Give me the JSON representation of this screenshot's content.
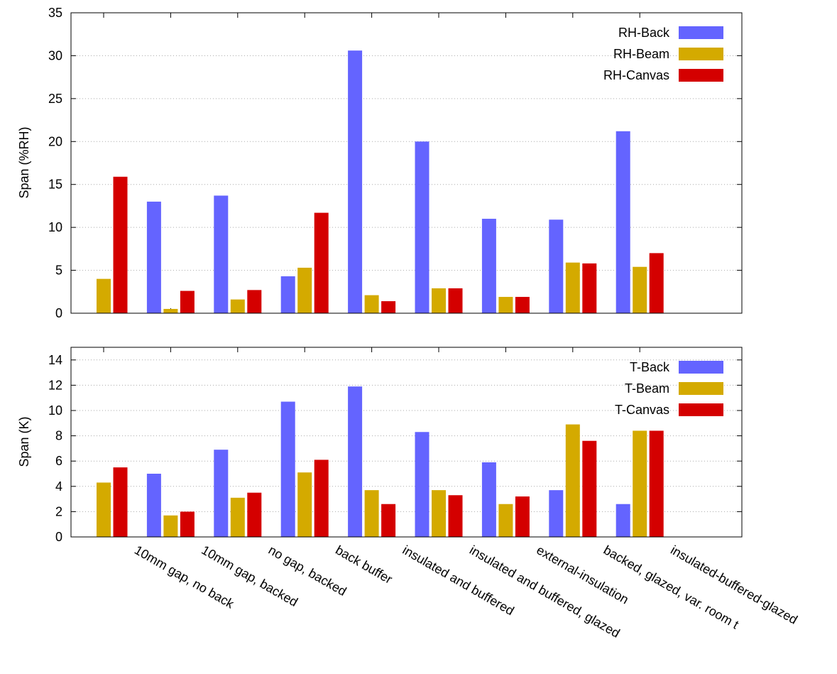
{
  "categories": [
    "10mm gap, no back",
    "10mm gap, backed",
    "no gap, backed",
    "back buffer",
    "insulated and buffered",
    "insulated and buffered, glazed",
    "external-insulation",
    "backed, glazed, var. room t",
    "insulated-buffered-glazed"
  ],
  "colors": {
    "back": "#6464ff",
    "beam": "#d4aa00",
    "canvas": "#d40000"
  },
  "chart_data": [
    {
      "type": "bar",
      "title": "",
      "xlabel": "",
      "ylabel": "Span (%RH)",
      "ylim": [
        0,
        35
      ],
      "yticks": [
        0,
        5,
        10,
        15,
        20,
        25,
        30,
        35
      ],
      "grid": true,
      "legend_position": "top-right",
      "series": [
        {
          "name": "RH-Back",
          "values": [
            0,
            13.0,
            13.7,
            4.3,
            30.6,
            20.0,
            11.0,
            10.9,
            21.2
          ]
        },
        {
          "name": "RH-Beam",
          "values": [
            4.0,
            0.5,
            1.6,
            5.3,
            2.1,
            2.9,
            1.9,
            5.9,
            5.4
          ]
        },
        {
          "name": "RH-Canvas",
          "values": [
            15.9,
            2.6,
            2.7,
            11.7,
            1.4,
            2.9,
            1.9,
            5.8,
            7.0
          ]
        }
      ]
    },
    {
      "type": "bar",
      "title": "",
      "xlabel": "",
      "ylabel": "Span (K)",
      "ylim": [
        0,
        15
      ],
      "yticks": [
        0,
        2,
        4,
        6,
        8,
        10,
        12,
        14
      ],
      "grid": true,
      "legend_position": "top-right",
      "series": [
        {
          "name": "T-Back",
          "values": [
            0,
            5.0,
            6.9,
            10.7,
            11.9,
            8.3,
            5.9,
            3.7,
            2.6
          ]
        },
        {
          "name": "T-Beam",
          "values": [
            4.3,
            1.7,
            3.1,
            5.1,
            3.7,
            3.7,
            2.6,
            8.9,
            8.4
          ]
        },
        {
          "name": "T-Canvas",
          "values": [
            5.5,
            2.0,
            3.5,
            6.1,
            2.6,
            3.3,
            3.2,
            7.6,
            8.4
          ]
        }
      ]
    }
  ]
}
